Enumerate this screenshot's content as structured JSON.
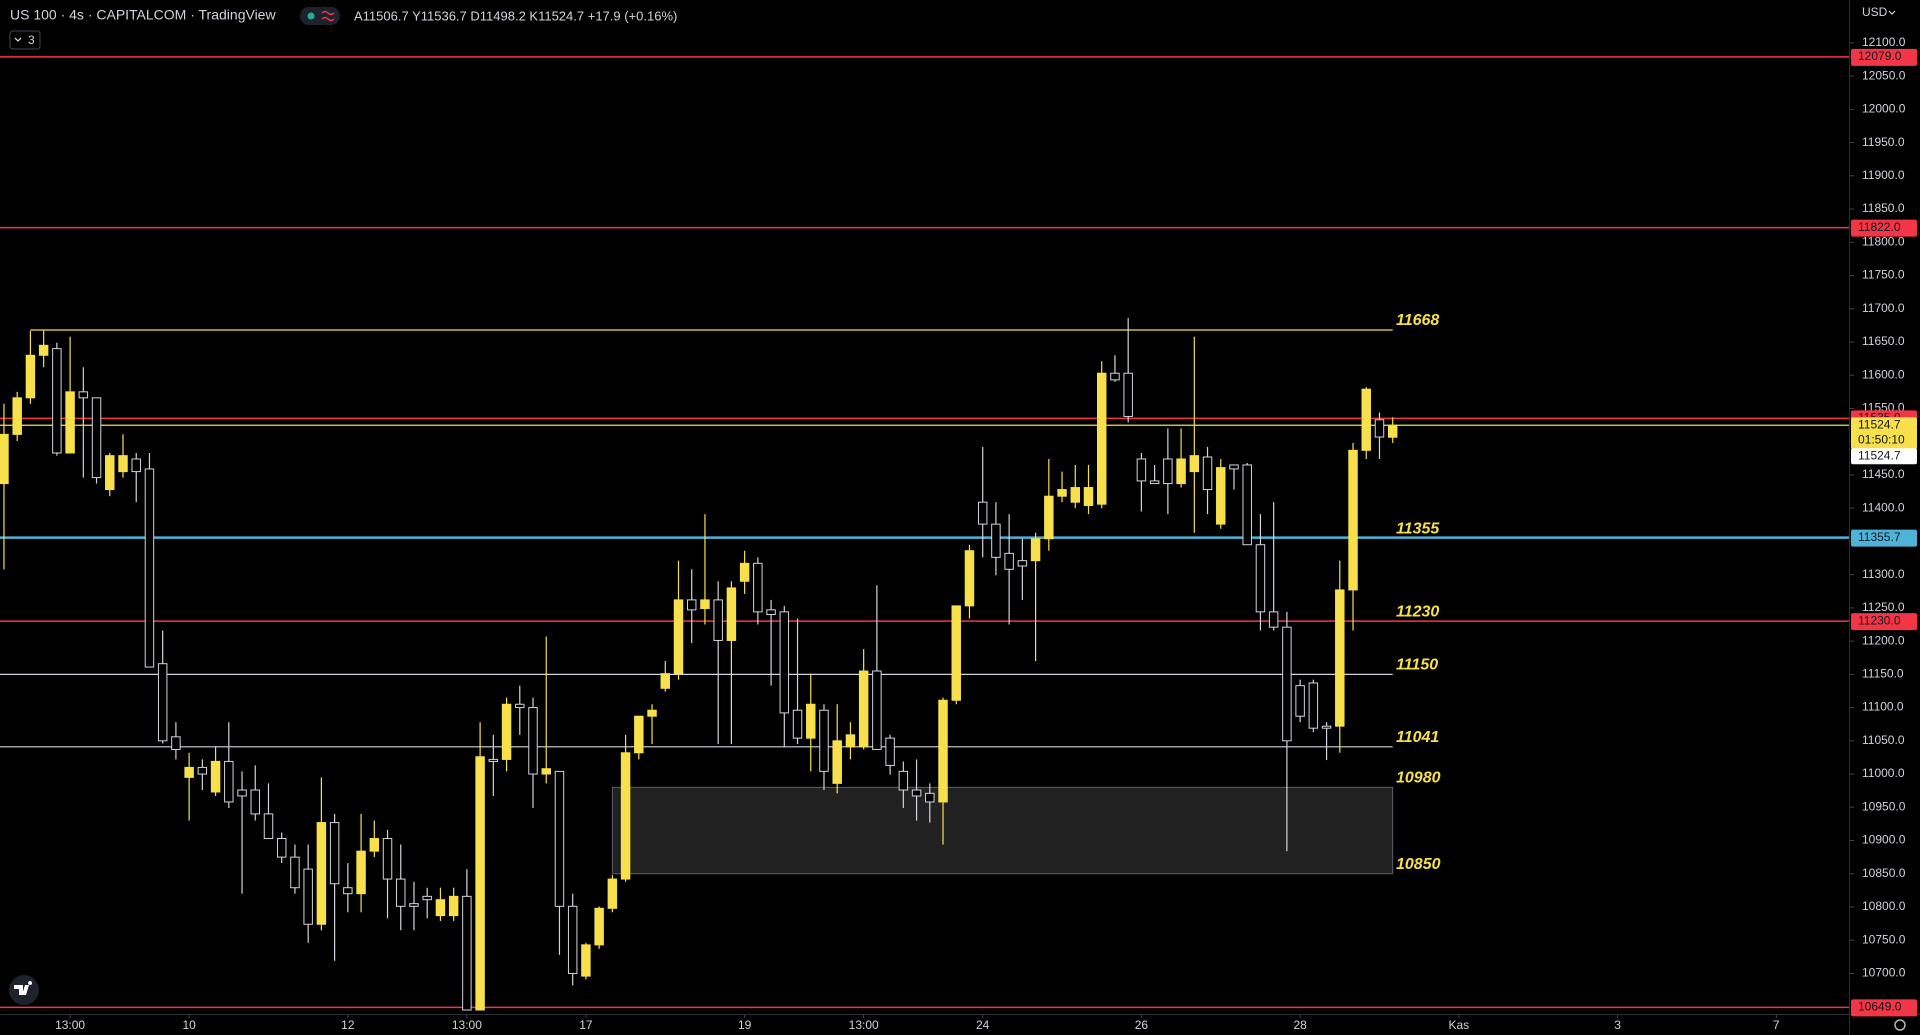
{
  "header": {
    "symbol": "US 100 · 4s · CAPITALCOM · TradingView",
    "ohlc": "A11506.7 Y11536.7 D11498.2 K11524.7 +17.9 (+0.16%)",
    "indicators": "3",
    "currency": "USD"
  },
  "chart_data": {
    "type": "candlestick",
    "up_color": "#f7e04b",
    "down_color": "#d1d4dc",
    "xlim": [
      -0.3,
      139.5
    ],
    "xticks": [
      {
        "value": 5,
        "label": "13:00"
      },
      {
        "value": 14,
        "label": "10"
      },
      {
        "value": 26,
        "label": "12"
      },
      {
        "value": 35,
        "label": "13:00"
      },
      {
        "value": 44,
        "label": "17"
      },
      {
        "value": 56,
        "label": "19"
      },
      {
        "value": 65,
        "label": "13:00"
      },
      {
        "value": 74,
        "label": "24"
      },
      {
        "value": 86,
        "label": "26"
      },
      {
        "value": 98,
        "label": "28"
      },
      {
        "value": 110,
        "label": "Kas"
      },
      {
        "value": 122,
        "label": "3"
      },
      {
        "value": 134,
        "label": "7"
      }
    ],
    "ylim": [
      10639,
      12164.5
    ],
    "yticks": [
      {
        "value": 10700,
        "label": "10700.0"
      },
      {
        "value": 10750,
        "label": "10750.0"
      },
      {
        "value": 10800,
        "label": "10800.0"
      },
      {
        "value": 10850,
        "label": "10850.0"
      },
      {
        "value": 10900,
        "label": "10900.0"
      },
      {
        "value": 10950,
        "label": "10950.0"
      },
      {
        "value": 11000,
        "label": "11000.0"
      },
      {
        "value": 11050,
        "label": "11050.0"
      },
      {
        "value": 11100,
        "label": "11100.0"
      },
      {
        "value": 11150,
        "label": "11150.0"
      },
      {
        "value": 11200,
        "label": "11200.0"
      },
      {
        "value": 11250,
        "label": "11250.0"
      },
      {
        "value": 11300,
        "label": "11300.0"
      },
      {
        "value": 11350,
        "label": "11350.0"
      },
      {
        "value": 11400,
        "label": "11400.0"
      },
      {
        "value": 11450,
        "label": "11450.0"
      },
      {
        "value": 11500,
        "label": "11500.0"
      },
      {
        "value": 11550,
        "label": "11550.0"
      },
      {
        "value": 11600,
        "label": "11600.0"
      },
      {
        "value": 11650,
        "label": "11650.0"
      },
      {
        "value": 11700,
        "label": "11700.0"
      },
      {
        "value": 11750,
        "label": "11750.0"
      },
      {
        "value": 11800,
        "label": "11800.0"
      },
      {
        "value": 11850,
        "label": "11850.0"
      },
      {
        "value": 11900,
        "label": "11900.0"
      },
      {
        "value": 11950,
        "label": "11950.0"
      },
      {
        "value": 12000,
        "label": "12000.0"
      },
      {
        "value": 12050,
        "label": "12050.0"
      },
      {
        "value": 12100,
        "label": "12100.0"
      }
    ],
    "candles": [
      [
        11437,
        11557,
        11308,
        11511
      ],
      [
        11511,
        11575,
        11501,
        11566
      ],
      [
        11566,
        11667,
        11557,
        11630
      ],
      [
        11630,
        11667,
        11612,
        11645
      ],
      [
        11640,
        11649,
        11479,
        11483
      ],
      [
        11483,
        11658,
        11483,
        11575
      ],
      [
        11575,
        11612,
        11446,
        11566
      ],
      [
        11566,
        11566,
        11437,
        11446
      ],
      [
        11428,
        11483,
        11418,
        11479
      ],
      [
        11455,
        11511,
        11446,
        11479
      ],
      [
        11474,
        11483,
        11409,
        11455
      ],
      [
        11459,
        11483,
        11161,
        11161
      ],
      [
        11166,
        11216,
        11046,
        11050
      ],
      [
        11056,
        11078,
        11022,
        11037
      ],
      [
        10995,
        11032,
        10930,
        11010
      ],
      [
        11010,
        11022,
        10976,
        11000
      ],
      [
        10973,
        11041,
        10967,
        11019
      ],
      [
        11019,
        11078,
        10949,
        10958
      ],
      [
        10976,
        11004,
        10820,
        10967
      ],
      [
        10976,
        11013,
        10930,
        10940
      ],
      [
        10940,
        10986,
        10903,
        10903
      ],
      [
        10903,
        10912,
        10866,
        10875
      ],
      [
        10875,
        10894,
        10820,
        10829
      ],
      [
        10857,
        10894,
        10746,
        10774
      ],
      [
        10774,
        10995,
        10765,
        10927
      ],
      [
        10927,
        10940,
        10719,
        10835
      ],
      [
        10829,
        10866,
        10792,
        10820
      ],
      [
        10820,
        10940,
        10792,
        10884
      ],
      [
        10884,
        10930,
        10875,
        10903
      ],
      [
        10903,
        10916,
        10783,
        10842
      ],
      [
        10842,
        10894,
        10765,
        10801
      ],
      [
        10805,
        10838,
        10765,
        10801
      ],
      [
        10816,
        10829,
        10783,
        10811
      ],
      [
        10787,
        10829,
        10779,
        10811
      ],
      [
        10787,
        10829,
        10779,
        10816
      ],
      [
        10816,
        10857,
        10645,
        10645
      ],
      [
        10645,
        11078,
        10645,
        11026
      ],
      [
        11022,
        11059,
        10967,
        11019
      ],
      [
        11022,
        11115,
        11004,
        11105
      ],
      [
        11105,
        11133,
        11059,
        11100
      ],
      [
        11100,
        11115,
        10949,
        11000
      ],
      [
        11000,
        11207,
        10986,
        11008
      ],
      [
        11004,
        11004,
        10728,
        10801
      ],
      [
        10801,
        10820,
        10682,
        10700
      ],
      [
        10696,
        10746,
        10691,
        10743
      ],
      [
        10743,
        10801,
        10737,
        10798
      ],
      [
        10798,
        10848,
        10792,
        10842
      ],
      [
        10842,
        11059,
        10838,
        11032
      ],
      [
        11032,
        11087,
        11022,
        11087
      ],
      [
        11087,
        11105,
        11045,
        11096
      ],
      [
        11129,
        11170,
        11124,
        11151
      ],
      [
        11151,
        11321,
        11142,
        11262
      ],
      [
        11262,
        11308,
        11197,
        11247
      ],
      [
        11249,
        11391,
        11225,
        11262
      ],
      [
        11262,
        11290,
        11045,
        11201
      ],
      [
        11201,
        11290,
        11045,
        11280
      ],
      [
        11290,
        11336,
        11271,
        11317
      ],
      [
        11317,
        11326,
        11225,
        11244
      ],
      [
        11247,
        11262,
        11133,
        11240
      ],
      [
        11244,
        11253,
        11041,
        11092
      ],
      [
        11096,
        11234,
        11045,
        11054
      ],
      [
        11054,
        11151,
        11004,
        11105
      ],
      [
        11096,
        11105,
        10976,
        11004
      ],
      [
        10986,
        11105,
        10971,
        11050
      ],
      [
        11041,
        11078,
        11022,
        11059
      ],
      [
        11041,
        11188,
        11037,
        11155
      ],
      [
        11155,
        11284,
        11037,
        11037
      ],
      [
        11054,
        11059,
        10999,
        11013
      ],
      [
        11004,
        11019,
        10949,
        10976
      ],
      [
        10976,
        11022,
        10930,
        10967
      ],
      [
        10971,
        10986,
        10927,
        10958
      ],
      [
        10958,
        11115,
        10894,
        11111
      ],
      [
        11111,
        11253,
        11105,
        11253
      ],
      [
        11253,
        11345,
        11234,
        11336
      ],
      [
        11409,
        11492,
        11326,
        11376
      ],
      [
        11376,
        11409,
        11299,
        11326
      ],
      [
        11332,
        11391,
        11225,
        11308
      ],
      [
        11321,
        11354,
        11262,
        11313
      ],
      [
        11321,
        11363,
        11170,
        11354
      ],
      [
        11354,
        11474,
        11336,
        11418
      ],
      [
        11418,
        11455,
        11409,
        11428
      ],
      [
        11409,
        11465,
        11400,
        11431
      ],
      [
        11404,
        11465,
        11391,
        11431
      ],
      [
        11406,
        11621,
        11400,
        11603
      ],
      [
        11603,
        11630,
        11590,
        11593
      ],
      [
        11603,
        11686,
        11529,
        11538
      ],
      [
        11474,
        11483,
        11395,
        11441
      ],
      [
        11441,
        11465,
        11437,
        11437
      ],
      [
        11474,
        11520,
        11391,
        11437
      ],
      [
        11437,
        11520,
        11431,
        11474
      ],
      [
        11455,
        11658,
        11363,
        11479
      ],
      [
        11477,
        11492,
        11391,
        11428
      ],
      [
        11376,
        11474,
        11369,
        11461
      ],
      [
        11465,
        11465,
        11428,
        11459
      ],
      [
        11465,
        11468,
        11345,
        11345
      ],
      [
        11345,
        11391,
        11216,
        11244
      ],
      [
        11244,
        11409,
        11216,
        11221
      ],
      [
        11221,
        11244,
        10884,
        11050
      ],
      [
        11133,
        11142,
        11078,
        11087
      ],
      [
        11137,
        11142,
        11063,
        11069
      ],
      [
        11072,
        11078,
        11021,
        11069
      ],
      [
        11072,
        11321,
        11032,
        11277
      ],
      [
        11277,
        11498,
        11216,
        11487
      ],
      [
        11487,
        11582,
        11474,
        11579
      ],
      [
        11533,
        11544,
        11474,
        11507
      ],
      [
        11506.7,
        11536.7,
        11498.2,
        11524.7
      ]
    ],
    "lines": [
      {
        "value": 12079,
        "color": "#f23645",
        "label": "12079.0"
      },
      {
        "value": 11822,
        "color": "#f23645",
        "label": "11822.0"
      },
      {
        "value": 11668,
        "color": "#f7e04b",
        "start": 2,
        "end": 105
      },
      {
        "value": 11535,
        "color": "#f23645",
        "label": "11535.0"
      },
      {
        "value": 11524.7,
        "color": "#f7e04b",
        "label": "11524.7",
        "countdown": "01:50:10"
      },
      {
        "value": 11355.7,
        "color": "#4fb3d9",
        "label": "11355.7"
      },
      {
        "value": 11230,
        "color": "#f23645",
        "label": "11230.0"
      },
      {
        "value": 11150,
        "color": "#d1d4dc",
        "end": 105
      },
      {
        "value": 11041,
        "color": "#d1d4dc",
        "end": 105
      },
      {
        "value": 10649,
        "color": "#f23645",
        "label": "10649.0"
      }
    ],
    "price_marker": {
      "value": 11524.7,
      "label": "11524.7"
    },
    "zone": {
      "low": 10850,
      "high": 10980,
      "start": 46,
      "end": 105
    },
    "annotations": [
      11668,
      11355,
      11230,
      11150,
      11041,
      10980,
      10850
    ]
  }
}
